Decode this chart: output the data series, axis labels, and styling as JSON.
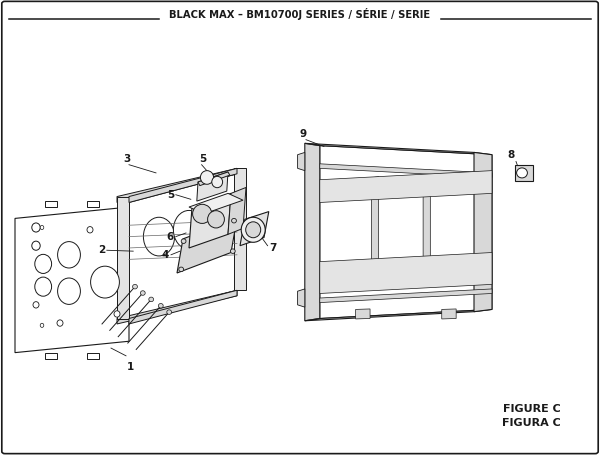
{
  "title": "BLACK MAX – BM10700J SERIES / SÉRIE / SERIE",
  "figure_label": "FIGURE C",
  "figura_label": "FIGURA C",
  "bg_color": "#ffffff",
  "line_color": "#1a1a1a",
  "face_color": "#f0f0f0",
  "dark_face": "#d8d8d8",
  "mid_face": "#e4e4e4"
}
